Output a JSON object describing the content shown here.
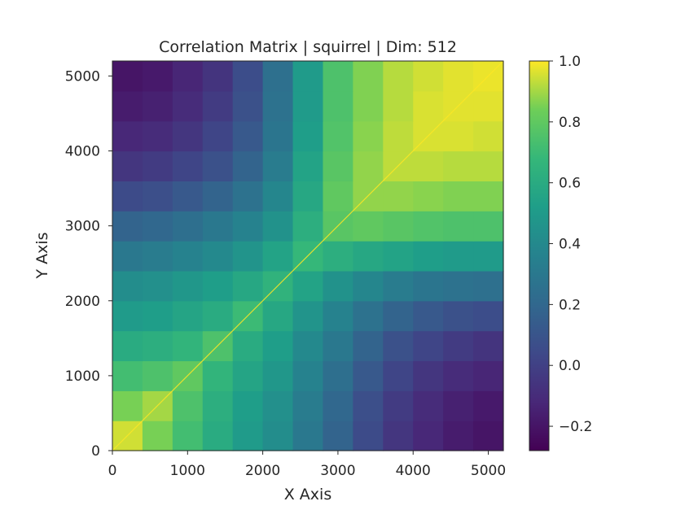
{
  "chart_data": {
    "type": "heatmap",
    "title": "Correlation Matrix | squirrel | Dim: 512",
    "xlabel": "X Axis",
    "ylabel": "Y Axis",
    "xlim": [
      0,
      5200
    ],
    "ylim": [
      0,
      5200
    ],
    "x_ticks": [
      0,
      1000,
      2000,
      3000,
      4000,
      5000
    ],
    "y_ticks": [
      0,
      1000,
      2000,
      3000,
      4000,
      5000
    ],
    "x_tick_labels": [
      "0",
      "1000",
      "2000",
      "3000",
      "4000",
      "5000"
    ],
    "y_tick_labels": [
      "0",
      "1000",
      "2000",
      "3000",
      "4000",
      "5000"
    ],
    "colorbar": {
      "colormap": "viridis",
      "vmin": -0.28,
      "vmax": 1.0,
      "ticks": [
        -0.2,
        0.0,
        0.2,
        0.4,
        0.6,
        0.8,
        1.0
      ],
      "tick_labels": [
        "−0.2",
        "0.0",
        "0.2",
        "0.4",
        "0.6",
        "0.8",
        "1.0"
      ]
    },
    "grid_size": 13,
    "values": [
      [
        0.95,
        0.85,
        0.72,
        0.6,
        0.5,
        0.42,
        0.3,
        0.18,
        0.05,
        -0.05,
        -0.12,
        -0.17,
        -0.2
      ],
      [
        0.85,
        0.9,
        0.75,
        0.62,
        0.52,
        0.44,
        0.32,
        0.2,
        0.07,
        -0.03,
        -0.1,
        -0.15,
        -0.18
      ],
      [
        0.72,
        0.75,
        0.8,
        0.66,
        0.56,
        0.48,
        0.36,
        0.24,
        0.12,
        0.02,
        -0.05,
        -0.1,
        -0.13
      ],
      [
        0.6,
        0.62,
        0.66,
        0.75,
        0.6,
        0.52,
        0.4,
        0.3,
        0.18,
        0.08,
        0.02,
        -0.03,
        -0.06
      ],
      [
        0.5,
        0.52,
        0.56,
        0.6,
        0.7,
        0.58,
        0.46,
        0.36,
        0.26,
        0.18,
        0.12,
        0.08,
        0.06
      ],
      [
        0.42,
        0.44,
        0.48,
        0.52,
        0.58,
        0.65,
        0.55,
        0.45,
        0.38,
        0.32,
        0.28,
        0.26,
        0.25
      ],
      [
        0.3,
        0.32,
        0.36,
        0.4,
        0.46,
        0.55,
        0.68,
        0.62,
        0.58,
        0.55,
        0.52,
        0.5,
        0.5
      ],
      [
        0.18,
        0.2,
        0.24,
        0.3,
        0.36,
        0.45,
        0.62,
        0.78,
        0.8,
        0.78,
        0.76,
        0.75,
        0.75
      ],
      [
        0.05,
        0.07,
        0.12,
        0.18,
        0.26,
        0.38,
        0.58,
        0.8,
        0.88,
        0.88,
        0.87,
        0.86,
        0.86
      ],
      [
        -0.05,
        -0.03,
        0.02,
        0.08,
        0.18,
        0.32,
        0.55,
        0.78,
        0.88,
        0.93,
        0.93,
        0.92,
        0.92
      ],
      [
        -0.12,
        -0.1,
        -0.05,
        0.02,
        0.12,
        0.28,
        0.52,
        0.76,
        0.87,
        0.93,
        0.96,
        0.96,
        0.95
      ],
      [
        -0.17,
        -0.15,
        -0.1,
        -0.03,
        0.08,
        0.26,
        0.5,
        0.75,
        0.86,
        0.92,
        0.96,
        0.97,
        0.97
      ],
      [
        -0.2,
        -0.18,
        -0.13,
        -0.06,
        0.06,
        0.25,
        0.5,
        0.75,
        0.86,
        0.92,
        0.95,
        0.97,
        0.98
      ]
    ]
  }
}
